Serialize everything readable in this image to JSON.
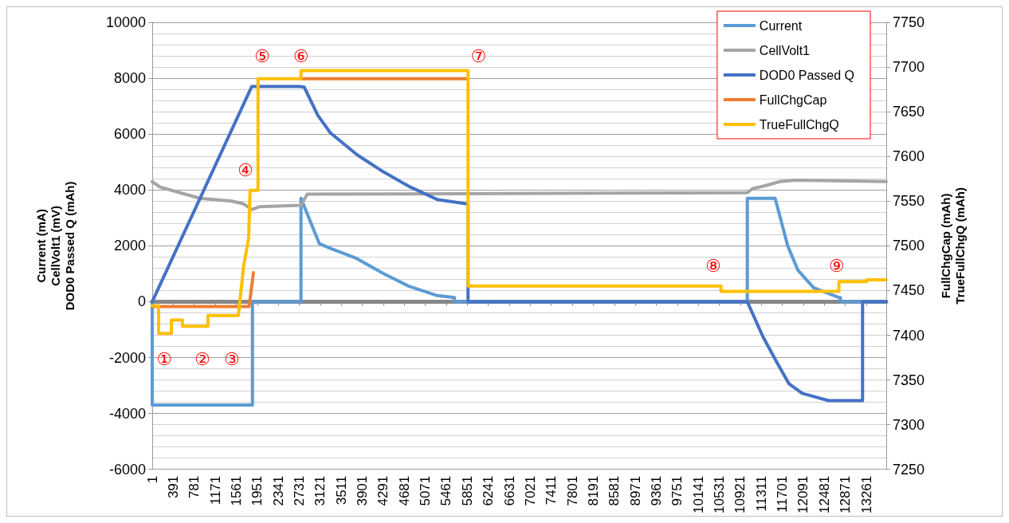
{
  "chart_data": {
    "type": "line",
    "ylabel": "Current (mA)\nCellVolt1 (mV)\nDOD0 Passed Q (mAh)",
    "y2label": "FullChgCap (mAh)\nTrueFullChgQ (mAh)",
    "xlim": [
      1,
      13630
    ],
    "xticks": [
      1,
      391,
      781,
      1171,
      1561,
      1951,
      2341,
      2731,
      3121,
      3511,
      3901,
      4291,
      4681,
      5071,
      5461,
      5851,
      6241,
      6631,
      7021,
      7411,
      7801,
      8191,
      8581,
      8971,
      9361,
      9751,
      10141,
      10531,
      10921,
      11311,
      11701,
      12091,
      12481,
      12871,
      13261
    ],
    "ylim": [
      -6000,
      10000
    ],
    "yticks": [
      -6000,
      -4000,
      -2000,
      0,
      2000,
      4000,
      6000,
      8000,
      10000
    ],
    "y2lim": [
      7250,
      7750
    ],
    "y2ticks": [
      7250,
      7300,
      7350,
      7400,
      7450,
      7500,
      7550,
      7600,
      7650,
      7700,
      7750
    ],
    "grid": "y",
    "legend": "top right",
    "marker": "none",
    "line_style": "solid",
    "series": [
      {
        "name": "Current",
        "color": "#5b9bd5",
        "x": [
          1,
          1,
          1862,
          1862,
          2763,
          2763,
          3103,
          3295,
          3797,
          4285,
          4772,
          5275,
          5613,
          5613,
          11050,
          11050,
          11567,
          11800,
          11990,
          12280,
          12750,
          12780,
          12780,
          13630
        ],
        "values": [
          0,
          -3700,
          -3700,
          0,
          0,
          3700,
          2080,
          1920,
          1550,
          1020,
          550,
          230,
          150,
          0,
          0,
          3700,
          3700,
          2000,
          1130,
          500,
          150,
          150,
          0,
          0
        ]
      },
      {
        "name": "CellVolt1",
        "color": "#a5a5a5",
        "x": [
          1,
          150,
          888,
          1478,
          1700,
          1848,
          1990,
          2763,
          2880,
          11050,
          11150,
          11380,
          11650,
          11950,
          13630
        ],
        "values": [
          4300,
          4100,
          3700,
          3600,
          3500,
          3300,
          3400,
          3450,
          3850,
          3900,
          4050,
          4150,
          4300,
          4350,
          4300
        ]
      },
      {
        "name": "DOD0 Passed Q",
        "color": "#4472c4",
        "x": [
          1,
          1848,
          2734,
          2824,
          3075,
          3310,
          3812,
          4300,
          4787,
          5290,
          5850,
          5865,
          5865,
          11050,
          11340,
          11590,
          11825,
          12070,
          12560,
          13190,
          13190,
          13630
        ],
        "values": [
          0,
          7700,
          7700,
          7680,
          6670,
          6040,
          5250,
          4640,
          4110,
          3660,
          3500,
          3500,
          0,
          0,
          -1250,
          -2140,
          -2940,
          -3280,
          -3540,
          -3540,
          0,
          0
        ]
      },
      {
        "name": "FullChgCap",
        "color": "#ed7d31",
        "axis": "y2",
        "x": [
          1,
          1800,
          1880,
          1900,
          2763,
          5865
        ],
        "values": [
          7432,
          7432,
          7470,
          null,
          7687,
          7687
        ]
      },
      {
        "name": "TrueFullChgQ",
        "color": "#ffc000",
        "axis": "y2",
        "x": [
          1,
          120,
          120,
          356,
          356,
          562,
          562,
          1035,
          1035,
          1600,
          1700,
          1790,
          1818,
          1965,
          1965,
          2763,
          2763,
          5865,
          5865,
          10562,
          10562,
          12750,
          12750,
          13265,
          13265,
          13630
        ],
        "values": [
          7433,
          7433,
          7402,
          7402,
          7417,
          7417,
          7410,
          7410,
          7422,
          7422,
          7478,
          7508,
          7562,
          7562,
          7687,
          7687,
          7696,
          7696,
          7455,
          7455,
          7449,
          7449,
          7460,
          7460,
          7462,
          7462
        ]
      }
    ],
    "annotations": [
      "①",
      "②",
      "③",
      "④",
      "⑤",
      "⑥",
      "⑦",
      "⑧",
      "⑨"
    ]
  }
}
